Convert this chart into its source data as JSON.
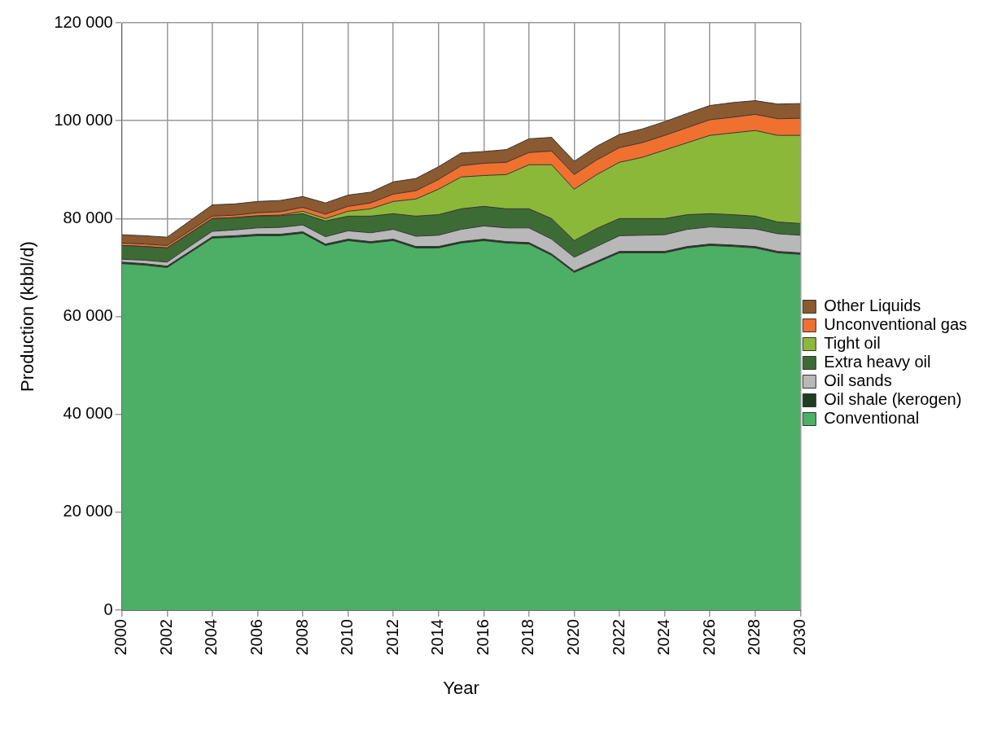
{
  "chart_data": {
    "type": "area",
    "stacked": true,
    "xlabel": "Year",
    "ylabel": "Production (kbbl/d)",
    "x": [
      2000,
      2001,
      2002,
      2003,
      2004,
      2005,
      2006,
      2007,
      2008,
      2009,
      2010,
      2011,
      2012,
      2013,
      2014,
      2015,
      2016,
      2017,
      2018,
      2019,
      2020,
      2021,
      2022,
      2023,
      2024,
      2025,
      2026,
      2027,
      2028,
      2029,
      2030
    ],
    "series": [
      {
        "name": "Conventional",
        "color": "#4caf65",
        "values": [
          70800,
          70500,
          70000,
          73000,
          76000,
          76200,
          76500,
          76500,
          77000,
          74500,
          75500,
          75000,
          75500,
          74000,
          74000,
          75000,
          75500,
          75000,
          74800,
          72500,
          69000,
          71000,
          73000,
          73000,
          73000,
          74000,
          74500,
          74300,
          74000,
          73000,
          72700
        ]
      },
      {
        "name": "Oil shale (kerogen)",
        "color": "#1f3d1f",
        "values": [
          300,
          300,
          300,
          300,
          300,
          300,
          300,
          300,
          300,
          300,
          300,
          300,
          300,
          300,
          300,
          300,
          300,
          300,
          300,
          300,
          300,
          300,
          300,
          300,
          300,
          300,
          300,
          300,
          300,
          300,
          300
        ]
      },
      {
        "name": "Oil sands",
        "color": "#b8b8b8",
        "values": [
          600,
          700,
          800,
          1000,
          1100,
          1200,
          1300,
          1400,
          1400,
          1500,
          1700,
          1800,
          2000,
          2100,
          2300,
          2500,
          2700,
          2800,
          3000,
          3000,
          2800,
          3000,
          3200,
          3300,
          3400,
          3500,
          3500,
          3500,
          3600,
          3600,
          3600
        ]
      },
      {
        "name": "Extra heavy oil",
        "color": "#3d6b35",
        "values": [
          2800,
          2800,
          2900,
          2700,
          2600,
          2500,
          2400,
          2400,
          2300,
          3200,
          3000,
          3400,
          3200,
          4100,
          4200,
          4200,
          4000,
          3900,
          3900,
          4200,
          3400,
          3700,
          3500,
          3400,
          3300,
          3000,
          2700,
          2700,
          2600,
          2400,
          2400
        ]
      },
      {
        "name": "Tight oil",
        "color": "#8cb83a",
        "values": [
          0,
          0,
          0,
          0,
          0,
          0,
          100,
          100,
          500,
          500,
          1000,
          1500,
          2500,
          3500,
          5200,
          6500,
          6300,
          7000,
          9000,
          11000,
          10500,
          11000,
          11500,
          12500,
          14000,
          14700,
          16000,
          16700,
          17500,
          17700,
          18000
        ]
      },
      {
        "name": "Unconventional gas",
        "color": "#f07030",
        "values": [
          500,
          500,
          500,
          500,
          500,
          500,
          600,
          700,
          800,
          900,
          1000,
          1200,
          1500,
          1700,
          2000,
          2300,
          2500,
          2500,
          2500,
          2800,
          3000,
          3000,
          3000,
          3000,
          3000,
          3100,
          3200,
          3200,
          3300,
          3400,
          3500
        ]
      },
      {
        "name": "Other Liquids",
        "color": "#8b5a30",
        "values": [
          1700,
          1700,
          1700,
          2000,
          2300,
          2300,
          2300,
          2300,
          2200,
          2300,
          2300,
          2200,
          2500,
          2500,
          2600,
          2600,
          2400,
          2600,
          2800,
          2800,
          2700,
          2800,
          2700,
          2800,
          2800,
          2900,
          2900,
          3000,
          2800,
          3000,
          3000
        ]
      }
    ],
    "xlim": [
      2000,
      2030
    ],
    "xticks": [
      2000,
      2002,
      2004,
      2006,
      2008,
      2010,
      2012,
      2014,
      2016,
      2018,
      2020,
      2022,
      2024,
      2026,
      2028,
      2030
    ],
    "ylim": [
      0,
      120000
    ],
    "yticks": [
      {
        "value": 0,
        "label": "0"
      },
      {
        "value": 20000,
        "label": "20 000"
      },
      {
        "value": 40000,
        "label": "40 000"
      },
      {
        "value": 60000,
        "label": "60 000"
      },
      {
        "value": 80000,
        "label": "80 000"
      },
      {
        "value": 100000,
        "label": "100 000"
      },
      {
        "value": 120000,
        "label": "120 000"
      }
    ],
    "grid": true,
    "legend": "right",
    "marker": "none"
  }
}
